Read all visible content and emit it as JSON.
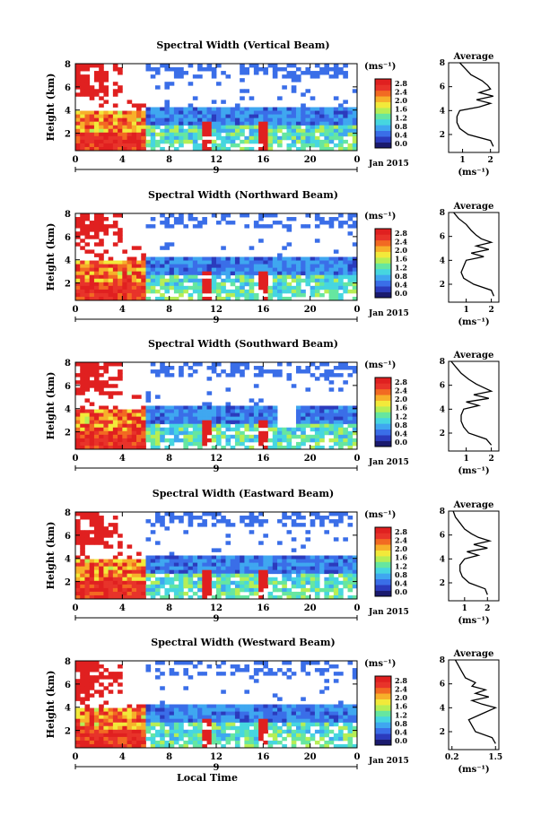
{
  "figure": {
    "date_label": "Jan 2015",
    "day_label": "9",
    "x_axis_label": "Local Time",
    "y_axis_label": "Height (km)",
    "colorbar_unit": "(ms⁻¹)",
    "profile_title": "Average",
    "profile_xlabel": "(ms⁻¹)",
    "colorbar_ticks": [
      "0.0",
      "0.4",
      "0.8",
      "1.2",
      "1.6",
      "2.0",
      "2.4",
      "2.8"
    ],
    "colormap": [
      "#1a1a6e",
      "#2b3bbd",
      "#3a6ee8",
      "#3fa7f0",
      "#46d6e0",
      "#66e6a0",
      "#b6ee55",
      "#f2e93a",
      "#f7b02a",
      "#f26a22",
      "#e8332a",
      "#e02020"
    ]
  },
  "chart_data": [
    {
      "type": "heatmap",
      "title": "Spectral Width (Vertical Beam)",
      "xlabel": "",
      "ylabel": "Height (km)",
      "x_ticks": [
        "0",
        "4",
        "8",
        "12",
        "16",
        "20",
        "0"
      ],
      "y_ticks": [
        "2",
        "4",
        "6",
        "8"
      ],
      "xlim": [
        0,
        24
      ],
      "ylim": [
        0.5,
        8
      ],
      "color_range": [
        0,
        2.8
      ],
      "profile": {
        "title": "Average",
        "x_ticks": [
          "1",
          "2"
        ],
        "xlim": [
          0.5,
          2.3
        ],
        "heights": [
          1.0,
          1.5,
          2.0,
          2.5,
          3.0,
          3.5,
          4.0,
          4.3,
          4.6,
          4.9,
          5.2,
          5.5,
          5.8,
          6.1,
          6.5,
          7.0,
          7.5,
          8.0
        ],
        "values": [
          2.1,
          2.0,
          1.2,
          0.9,
          0.8,
          0.8,
          0.9,
          1.6,
          2.0,
          1.5,
          2.1,
          1.6,
          2.0,
          1.9,
          1.7,
          1.3,
          1.1,
          0.9
        ]
      }
    },
    {
      "type": "heatmap",
      "title": "Spectral Width (Northward Beam)",
      "xlabel": "",
      "ylabel": "Height (km)",
      "x_ticks": [
        "0",
        "4",
        "8",
        "12",
        "16",
        "20",
        "0"
      ],
      "y_ticks": [
        "2",
        "4",
        "6",
        "8"
      ],
      "xlim": [
        0,
        24
      ],
      "ylim": [
        0.5,
        8
      ],
      "color_range": [
        0,
        2.8
      ],
      "profile": {
        "title": "Average",
        "x_ticks": [
          "1",
          "2"
        ],
        "xlim": [
          0.3,
          2.3
        ],
        "heights": [
          1.0,
          1.5,
          2.0,
          2.5,
          3.0,
          3.5,
          4.0,
          4.3,
          4.6,
          4.9,
          5.2,
          5.5,
          5.8,
          6.1,
          6.5,
          7.0,
          7.5,
          8.0
        ],
        "values": [
          2.1,
          2.0,
          1.3,
          0.9,
          0.8,
          0.9,
          1.0,
          1.7,
          1.2,
          1.9,
          1.4,
          2.0,
          1.6,
          1.4,
          1.2,
          1.0,
          0.7,
          0.5
        ]
      }
    },
    {
      "type": "heatmap",
      "title": "Spectral Width (Southward Beam)",
      "xlabel": "",
      "ylabel": "Height (km)",
      "x_ticks": [
        "0",
        "4",
        "8",
        "12",
        "16",
        "20",
        "0"
      ],
      "y_ticks": [
        "2",
        "4",
        "6",
        "8"
      ],
      "xlim": [
        0,
        24
      ],
      "ylim": [
        0.5,
        8
      ],
      "color_range": [
        0,
        2.8
      ],
      "profile": {
        "title": "Average",
        "x_ticks": [
          "1",
          "2"
        ],
        "xlim": [
          0.3,
          2.3
        ],
        "heights": [
          1.0,
          1.5,
          2.0,
          2.5,
          3.0,
          3.5,
          4.0,
          4.3,
          4.6,
          4.9,
          5.2,
          5.5,
          5.8,
          6.1,
          6.5,
          7.0,
          7.5,
          8.0
        ],
        "values": [
          2.0,
          1.8,
          1.1,
          0.9,
          0.8,
          0.8,
          0.9,
          1.5,
          1.0,
          1.9,
          1.3,
          2.0,
          1.7,
          1.4,
          1.1,
          0.8,
          0.6,
          0.4
        ]
      }
    },
    {
      "type": "heatmap",
      "title": "Spectral Width (Eastward Beam)",
      "xlabel": "",
      "ylabel": "Height (km)",
      "x_ticks": [
        "0",
        "4",
        "8",
        "12",
        "16",
        "20",
        "0"
      ],
      "y_ticks": [
        "2",
        "4",
        "6",
        "8"
      ],
      "xlim": [
        0,
        24
      ],
      "ylim": [
        0.5,
        8
      ],
      "color_range": [
        0,
        2.8
      ],
      "profile": {
        "title": "Average",
        "x_ticks": [
          "1",
          "2"
        ],
        "xlim": [
          0.3,
          2.5
        ],
        "heights": [
          1.0,
          1.5,
          2.0,
          2.5,
          3.0,
          3.5,
          4.0,
          4.3,
          4.6,
          4.9,
          5.2,
          5.5,
          5.8,
          6.1,
          6.5,
          7.0,
          7.5,
          8.0
        ],
        "values": [
          2.0,
          1.9,
          1.2,
          0.9,
          0.8,
          0.8,
          1.0,
          1.6,
          1.1,
          2.0,
          1.4,
          2.1,
          1.6,
          1.3,
          1.0,
          0.8,
          0.6,
          0.5
        ]
      }
    },
    {
      "type": "heatmap",
      "title": "Spectral Width (Westward Beam)",
      "xlabel": "Local Time",
      "ylabel": "Height (km)",
      "x_ticks": [
        "0",
        "4",
        "8",
        "12",
        "16",
        "20",
        "0"
      ],
      "y_ticks": [
        "2",
        "4",
        "6",
        "8"
      ],
      "xlim": [
        0,
        24
      ],
      "ylim": [
        0.5,
        8
      ],
      "color_range": [
        0,
        2.8
      ],
      "profile": {
        "title": "Average",
        "x_ticks": [
          "0.2",
          "1.5"
        ],
        "xlim": [
          0.1,
          1.6
        ],
        "heights": [
          1.0,
          1.5,
          2.0,
          2.5,
          3.0,
          3.5,
          4.0,
          4.3,
          4.6,
          4.9,
          5.2,
          5.5,
          5.8,
          6.1,
          6.5,
          7.0,
          7.5,
          8.0
        ],
        "values": [
          1.5,
          1.4,
          0.9,
          0.8,
          0.7,
          1.1,
          1.5,
          1.1,
          0.8,
          1.3,
          0.9,
          1.2,
          0.8,
          0.9,
          0.6,
          0.5,
          0.4,
          0.3
        ]
      }
    }
  ]
}
